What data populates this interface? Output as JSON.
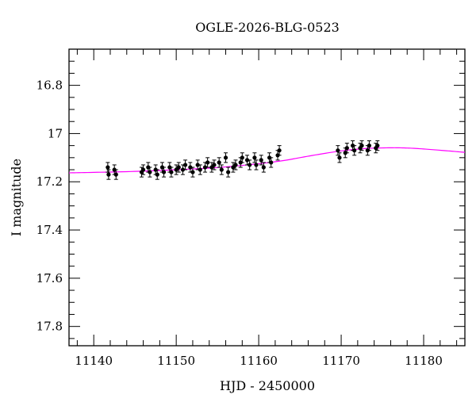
{
  "chart_data": {
    "type": "scatter",
    "title": "OGLE-2026-BLG-0523",
    "xlabel": "HJD - 2450000",
    "ylabel": "I magnitude",
    "xlim": [
      11137,
      11185
    ],
    "ylim": [
      17.88,
      16.65
    ],
    "y_inverted": true,
    "grid": false,
    "x_ticks": [
      11140,
      11150,
      11160,
      11170,
      11180
    ],
    "x_tick_labels": [
      "11140",
      "11150",
      "11160",
      "11170",
      "11180"
    ],
    "y_ticks": [
      16.8,
      17.0,
      17.2,
      17.4,
      17.6,
      17.8
    ],
    "y_tick_labels": [
      "16.8",
      "17",
      "17.2",
      "17.4",
      "17.6",
      "17.8"
    ],
    "colors": {
      "points": "#000000",
      "model": "#ff00ff"
    },
    "series": [
      {
        "kind": "points",
        "error": 0.02,
        "x": [
          11141.7,
          11141.8,
          11142.5,
          11142.7,
          11145.8,
          11146.0,
          11146.6,
          11146.8,
          11147.5,
          11147.7,
          11148.3,
          11148.5,
          11149.2,
          11149.4,
          11150.0,
          11150.3,
          11150.8,
          11151.1,
          11151.7,
          11152.0,
          11152.6,
          11152.9,
          11153.5,
          11153.8,
          11154.3,
          11154.6,
          11155.2,
          11155.5,
          11156.0,
          11156.3,
          11156.9,
          11157.2,
          11157.8,
          11158.0,
          11158.6,
          11158.9,
          11159.5,
          11159.7,
          11160.3,
          11160.6,
          11161.3,
          11161.5,
          11162.3,
          11162.5,
          11169.6,
          11169.8,
          11170.5,
          11170.7,
          11171.4,
          11171.6,
          11172.3,
          11172.5,
          11173.2,
          11173.4,
          11174.2,
          11174.4
        ],
        "y": [
          17.14,
          17.17,
          17.15,
          17.17,
          17.16,
          17.15,
          17.14,
          17.16,
          17.15,
          17.17,
          17.14,
          17.16,
          17.14,
          17.16,
          17.15,
          17.14,
          17.15,
          17.13,
          17.14,
          17.16,
          17.13,
          17.15,
          17.14,
          17.12,
          17.14,
          17.13,
          17.12,
          17.15,
          17.1,
          17.16,
          17.14,
          17.13,
          17.12,
          17.1,
          17.11,
          17.13,
          17.1,
          17.13,
          17.11,
          17.14,
          17.1,
          17.12,
          17.09,
          17.07,
          17.07,
          17.1,
          17.08,
          17.06,
          17.05,
          17.07,
          17.06,
          17.05,
          17.07,
          17.05,
          17.06,
          17.05
        ]
      },
      {
        "kind": "model",
        "x": [
          11137,
          11140,
          11145,
          11150,
          11155,
          11160,
          11163,
          11165,
          11167,
          11170,
          11173,
          11176,
          11178,
          11180,
          11183,
          11185
        ],
        "y": [
          17.163,
          17.161,
          17.157,
          17.15,
          17.141,
          17.125,
          17.112,
          17.1,
          17.088,
          17.072,
          17.062,
          17.059,
          17.06,
          17.064,
          17.072,
          17.078
        ]
      }
    ]
  }
}
